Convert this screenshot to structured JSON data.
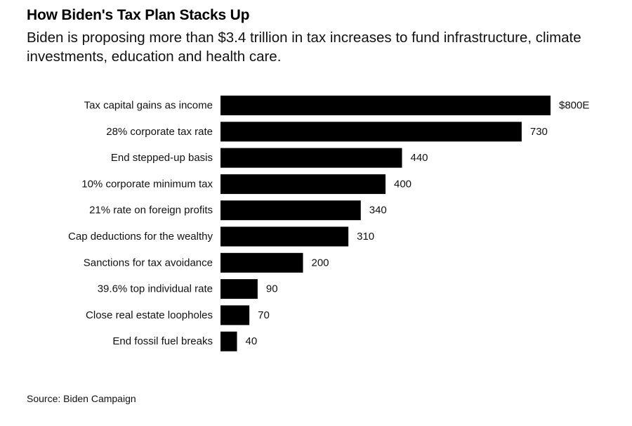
{
  "title": "How Biden's Tax Plan Stacks Up",
  "subtitle": "Biden is proposing more than $3.4 trillion in tax increases to fund infrastructure, climate investments, education and health care.",
  "source": "Source: Biden Campaign",
  "colors": {
    "bar": "#000000",
    "text": "#000000"
  },
  "chart_data": {
    "type": "bar",
    "orientation": "horizontal",
    "title": "How Biden's Tax Plan Stacks Up",
    "xlabel": "",
    "ylabel": "",
    "categories": [
      "Tax capital gains as income",
      "28% corporate tax rate",
      "End stepped-up basis",
      "10% corporate minimum tax",
      "21% rate on foreign profits",
      "Cap deductions for the wealthy",
      "Sanctions for tax avoidance",
      "39.6% top individual rate",
      "Close real estate loopholes",
      "End fossil fuel breaks"
    ],
    "values": [
      800,
      730,
      440,
      400,
      340,
      310,
      200,
      90,
      70,
      40
    ],
    "value_labels": [
      "$800E",
      "730",
      "440",
      "400",
      "340",
      "310",
      "200",
      "90",
      "70",
      "40"
    ],
    "xlim": [
      0,
      800
    ],
    "grid": false,
    "legend": "none"
  }
}
